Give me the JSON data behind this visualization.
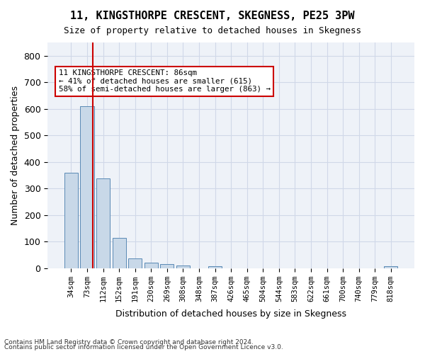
{
  "title": "11, KINGSTHORPE CRESCENT, SKEGNESS, PE25 3PW",
  "subtitle": "Size of property relative to detached houses in Skegness",
  "xlabel": "Distribution of detached houses by size in Skegness",
  "ylabel": "Number of detached properties",
  "footnote1": "Contains HM Land Registry data © Crown copyright and database right 2024.",
  "footnote2": "Contains public sector information licensed under the Open Government Licence v3.0.",
  "bin_labels": [
    "34sqm",
    "73sqm",
    "112sqm",
    "152sqm",
    "191sqm",
    "230sqm",
    "269sqm",
    "308sqm",
    "348sqm",
    "387sqm",
    "426sqm",
    "465sqm",
    "504sqm",
    "544sqm",
    "583sqm",
    "622sqm",
    "661sqm",
    "700sqm",
    "740sqm",
    "779sqm",
    "818sqm"
  ],
  "bar_values": [
    358,
    611,
    337,
    114,
    36,
    20,
    15,
    10,
    0,
    8,
    0,
    0,
    0,
    0,
    0,
    0,
    0,
    0,
    0,
    0,
    8
  ],
  "bar_color": "#c8d8e8",
  "bar_edge_color": "#5a8ab5",
  "grid_color": "#d0d8e8",
  "background_color": "#eef2f8",
  "vline_x": 2,
  "vline_color": "#cc0000",
  "annotation_text": "11 KINGSTHORPE CRESCENT: 86sqm\n← 41% of detached houses are smaller (615)\n58% of semi-detached houses are larger (863) →",
  "annotation_box_color": "#ffffff",
  "annotation_box_edge": "#cc0000",
  "ylim": [
    0,
    850
  ],
  "yticks": [
    0,
    100,
    200,
    300,
    400,
    500,
    600,
    700,
    800
  ]
}
